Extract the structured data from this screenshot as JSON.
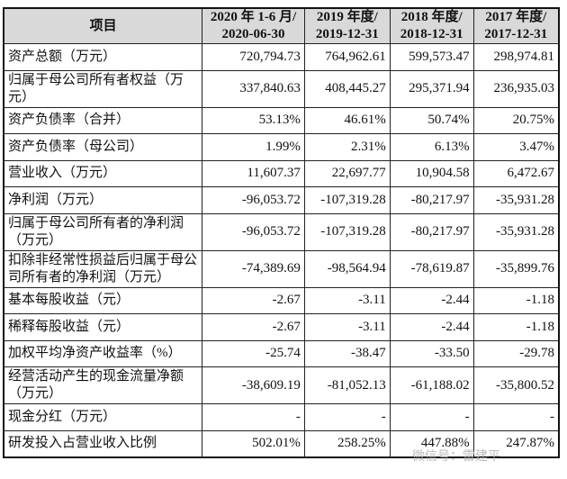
{
  "header": [
    "项目",
    "2020 年 1-6 月/\n2020-06-30",
    "2019 年度/\n2019-12-31",
    "2018 年度/\n2018-12-31",
    "2017 年度/\n2017-12-31"
  ],
  "rows": [
    {
      "label": "资产总额（万元）",
      "values": [
        "720,794.73",
        "764,962.61",
        "599,573.47",
        "298,974.81"
      ],
      "h": "s"
    },
    {
      "label": "归属于母公司所有者权益（万元）",
      "values": [
        "337,840.63",
        "408,445.27",
        "295,371.94",
        "236,935.03"
      ],
      "h": "d"
    },
    {
      "label": "资产负债率（合并）",
      "values": [
        "53.13%",
        "46.61%",
        "50.74%",
        "20.75%"
      ],
      "h": "s"
    },
    {
      "label": "资产负债率（母公司）",
      "values": [
        "1.99%",
        "2.31%",
        "6.13%",
        "3.47%"
      ],
      "h": "s"
    },
    {
      "label": "营业收入（万元）",
      "values": [
        "11,607.37",
        "22,697.77",
        "10,904.58",
        "6,472.67"
      ],
      "h": "s"
    },
    {
      "label": "净利润（万元）",
      "values": [
        "-96,053.72",
        "-107,319.28",
        "-80,217.97",
        "-35,931.28"
      ],
      "h": "s"
    },
    {
      "label": "归属于母公司所有者的净利润（万元）",
      "values": [
        "-96,053.72",
        "-107,319.28",
        "-80,217.97",
        "-35,931.28"
      ],
      "h": "d"
    },
    {
      "label": "扣除非经常性损益后归属于母公司所有者的净利润（万元）",
      "values": [
        "-74,389.69",
        "-98,564.94",
        "-78,619.87",
        "-35,899.76"
      ],
      "h": "d"
    },
    {
      "label": "基本每股收益（元）",
      "values": [
        "-2.67",
        "-3.11",
        "-2.44",
        "-1.18"
      ],
      "h": "s"
    },
    {
      "label": "稀释每股收益（元）",
      "values": [
        "-2.67",
        "-3.11",
        "-2.44",
        "-1.18"
      ],
      "h": "s"
    },
    {
      "label": "加权平均净资产收益率（%）",
      "values": [
        "-25.74",
        "-38.47",
        "-33.50",
        "-29.78"
      ],
      "h": "s"
    },
    {
      "label": "经营活动产生的现金流量净额（万元）",
      "values": [
        "-38,609.19",
        "-81,052.13",
        "-61,188.02",
        "-35,800.52"
      ],
      "h": "d"
    },
    {
      "label": "现金分红（万元）",
      "values": [
        "-",
        "-",
        "-",
        "-"
      ],
      "h": "s"
    },
    {
      "label": "研发投入占营业收入比例",
      "values": [
        "502.01%",
        "258.25%",
        "447.88%",
        "247.87%"
      ],
      "h": "s"
    }
  ],
  "watermark": "微信号：雷建平"
}
